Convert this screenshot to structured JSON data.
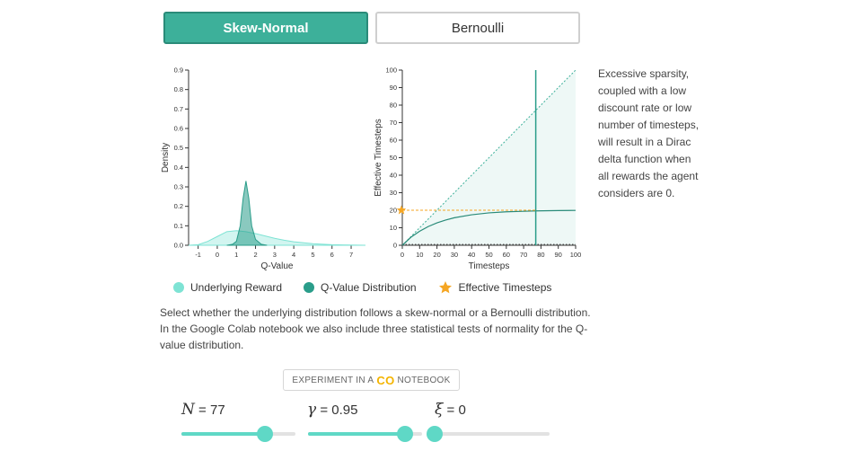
{
  "tabs": {
    "active_label": "Skew-Normal",
    "inactive_label": "Bernoulli"
  },
  "chart_data": [
    {
      "type": "area",
      "xlabel": "Q-Value",
      "ylabel": "Density",
      "xlim": [
        -1.5,
        7.75
      ],
      "ylim": [
        0,
        0.9
      ],
      "xticks": [
        -1,
        0,
        1,
        2,
        3,
        4,
        5,
        6,
        7
      ],
      "yticks": [
        0.0,
        0.1,
        0.2,
        0.3,
        0.4,
        0.5,
        0.6,
        0.7,
        0.8,
        0.9
      ],
      "series": [
        {
          "name": "Underlying Reward",
          "x": [
            -1.5,
            -1.0,
            -0.5,
            0.0,
            0.5,
            1.0,
            1.5,
            2.0,
            2.5,
            3.0,
            3.5,
            4.0,
            5.0,
            6.0,
            7.0,
            7.75
          ],
          "y": [
            0.0,
            0.003,
            0.02,
            0.045,
            0.07,
            0.075,
            0.07,
            0.06,
            0.048,
            0.036,
            0.026,
            0.018,
            0.008,
            0.003,
            0.001,
            0.0
          ]
        },
        {
          "name": "Q-Value Distribution",
          "x": [
            0.5,
            0.8,
            1.0,
            1.2,
            1.35,
            1.5,
            1.65,
            1.8,
            2.0,
            2.3,
            2.6
          ],
          "y": [
            0.0,
            0.005,
            0.02,
            0.1,
            0.24,
            0.33,
            0.24,
            0.1,
            0.03,
            0.005,
            0.0
          ]
        }
      ]
    },
    {
      "type": "line",
      "xlabel": "Timesteps",
      "ylabel": "Effective Timesteps",
      "xlim": [
        0,
        100
      ],
      "ylim": [
        0,
        100
      ],
      "xticks": [
        0,
        10,
        20,
        30,
        40,
        50,
        60,
        70,
        80,
        90,
        100
      ],
      "yticks": [
        0,
        10,
        20,
        30,
        40,
        50,
        60,
        70,
        80,
        90,
        100
      ],
      "N": 77,
      "effective_timesteps": 20,
      "series": [
        {
          "name": "Effective Timesteps",
          "x": [
            0,
            5,
            10,
            15,
            20,
            25,
            30,
            40,
            50,
            60,
            70,
            77,
            90,
            100
          ],
          "y": [
            0,
            4.6,
            8.0,
            10.7,
            12.8,
            14.4,
            15.7,
            17.4,
            18.5,
            19.1,
            19.4,
            19.6,
            19.8,
            19.9
          ]
        }
      ]
    }
  ],
  "side_text": "Excessive sparsity, coupled with a low discount rate or low number of timesteps, will result in a Dirac delta function when all rewards the agent considers are 0.",
  "legend": [
    {
      "label": "Underlying Reward",
      "color": "#7ee3d4",
      "icon": "dot-icon"
    },
    {
      "label": "Q-Value Distribution",
      "color": "#2a9d8a",
      "icon": "dot-icon"
    },
    {
      "label": "Effective Timesteps",
      "color": "#f5a623",
      "icon": "star-icon"
    }
  ],
  "description": "Select whether the underlying distribution follows a skew-normal or a Bernoulli distribution. In the Google Colab notebook we also include three statistical tests of normality for the Q-value distribution.",
  "colab": {
    "prefix": "EXPERIMENT IN A",
    "logo": "CO",
    "suffix": "NOTEBOOK"
  },
  "params": [
    {
      "symbol": "N",
      "value": "= 77",
      "fraction": 0.73
    },
    {
      "symbol": "γ",
      "value": "= 0.95",
      "fraction": 0.85
    },
    {
      "symbol": "ξ",
      "value": "= 0",
      "fraction": 0.0
    }
  ],
  "colors": {
    "accent": "#3db09a",
    "accent_dark": "#2a8b79",
    "light_teal": "#7ee3d4",
    "star": "#f5a623"
  }
}
